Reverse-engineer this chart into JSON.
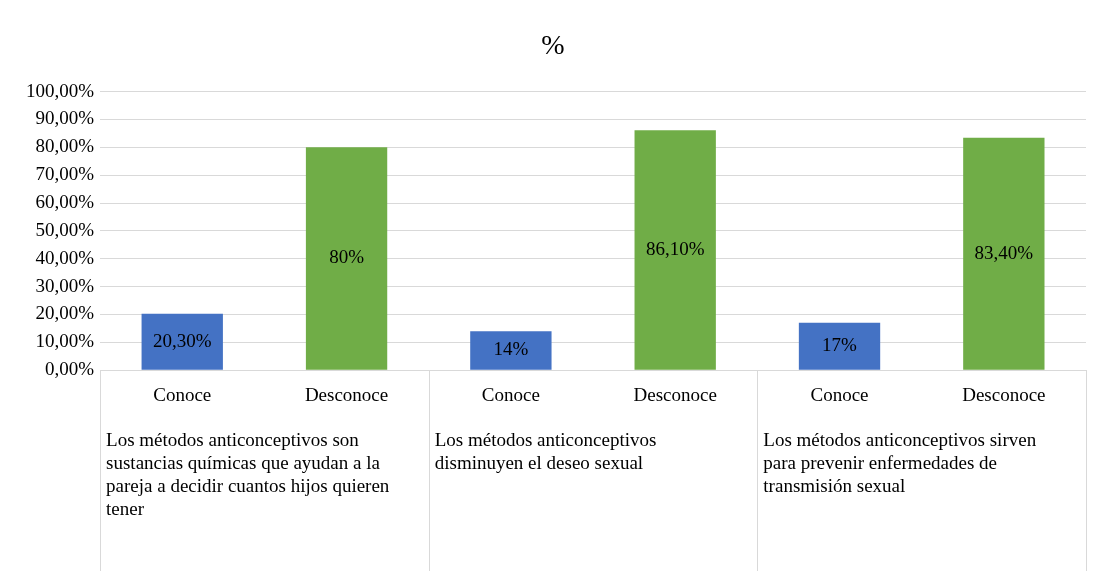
{
  "chart_data": {
    "type": "bar",
    "title": "%",
    "categories": [
      "Conoce",
      "Desconoce",
      "Conoce",
      "Desconoce",
      "Conoce",
      "Desconoce"
    ],
    "values": [
      20.3,
      80,
      14,
      86.1,
      17,
      83.4
    ],
    "colors": [
      "#4472c4",
      "#70ad47",
      "#4472c4",
      "#70ad47",
      "#4472c4",
      "#70ad47"
    ],
    "value_labels": [
      "20,30%",
      "80%",
      "14%",
      "86,10%",
      "17%",
      "83,40%"
    ],
    "ylim": [
      0,
      100
    ],
    "yticks": [
      {
        "value": 0,
        "label": "0,00%"
      },
      {
        "value": 10,
        "label": "10,00%"
      },
      {
        "value": 20,
        "label": "20,00%"
      },
      {
        "value": 30,
        "label": "30,00%"
      },
      {
        "value": 40,
        "label": "40,00%"
      },
      {
        "value": 50,
        "label": "50,00%"
      },
      {
        "value": 60,
        "label": "60,00%"
      },
      {
        "value": 70,
        "label": "70,00%"
      },
      {
        "value": 80,
        "label": "80,00%"
      },
      {
        "value": 90,
        "label": "90,00%"
      },
      {
        "value": 100,
        "label": "100,00%"
      }
    ],
    "grid": "y",
    "annotations": [
      "Los métodos anticonceptivos son sustancias químicas que ayudan a la pareja a decidir cuantos hijos quieren tener",
      "Los métodos anticonceptivos disminuyen el deseo sexual",
      "Los métodos anticonceptivos sirven para prevenir enfermedades de transmisión sexual"
    ]
  }
}
